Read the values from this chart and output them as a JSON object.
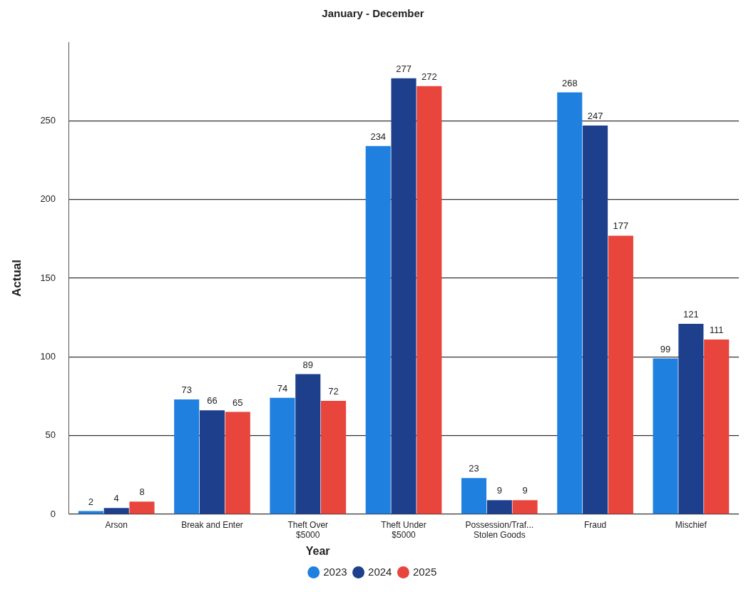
{
  "chart_data": {
    "type": "bar",
    "title": "January - December",
    "ylabel": "Actual",
    "legend_title": "Year",
    "categories": [
      "Arson",
      "Break and Enter",
      "Theft Over $5000",
      "Theft Under $5000",
      "Possession/Traf... Stolen Goods",
      "Fraud",
      "Mischief"
    ],
    "series": [
      {
        "name": "2023",
        "color": "#1f80e0",
        "values": [
          2,
          73,
          74,
          234,
          23,
          268,
          99
        ]
      },
      {
        "name": "2024",
        "color": "#1d3f8c",
        "values": [
          4,
          66,
          89,
          277,
          9,
          247,
          121
        ]
      },
      {
        "name": "2025",
        "color": "#e8453c",
        "values": [
          8,
          65,
          72,
          272,
          9,
          177,
          111
        ]
      }
    ],
    "ylim": [
      0,
      300
    ],
    "yticks": [
      0,
      50,
      100,
      150,
      200,
      250
    ],
    "grid": "y",
    "legend": "bottom",
    "marker": "circle",
    "data_labels": true
  }
}
